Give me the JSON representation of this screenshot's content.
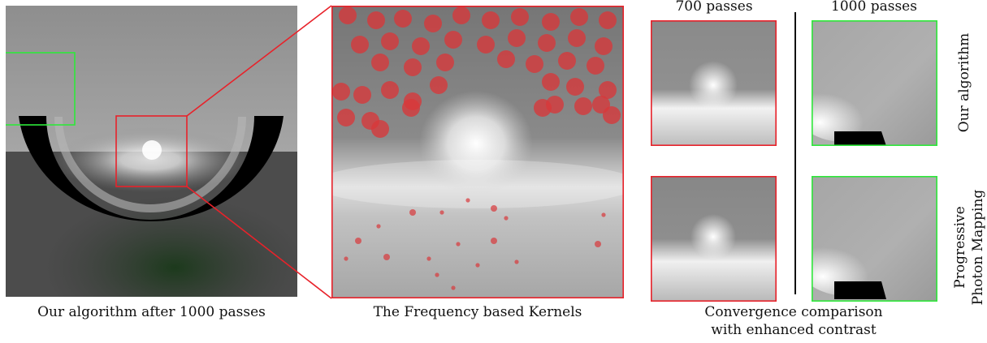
{
  "figure": {
    "captions": {
      "main_render": "Our algorithm after 1000 passes",
      "kernels": "The Frequency based Kernels",
      "comparison_line1": "Convergence comparison",
      "comparison_line2": "with enhanced contrast"
    },
    "column_headers": {
      "left": "700 passes",
      "right": "1000 passes"
    },
    "row_labels": {
      "top": "Our algorithm",
      "bottom_line1": "Progressive",
      "bottom_line2": "Photon Mapping"
    },
    "colors": {
      "red_frame": "#e8222a",
      "green_frame": "#2ee83a",
      "kernel_dot": "#d9373a"
    }
  }
}
